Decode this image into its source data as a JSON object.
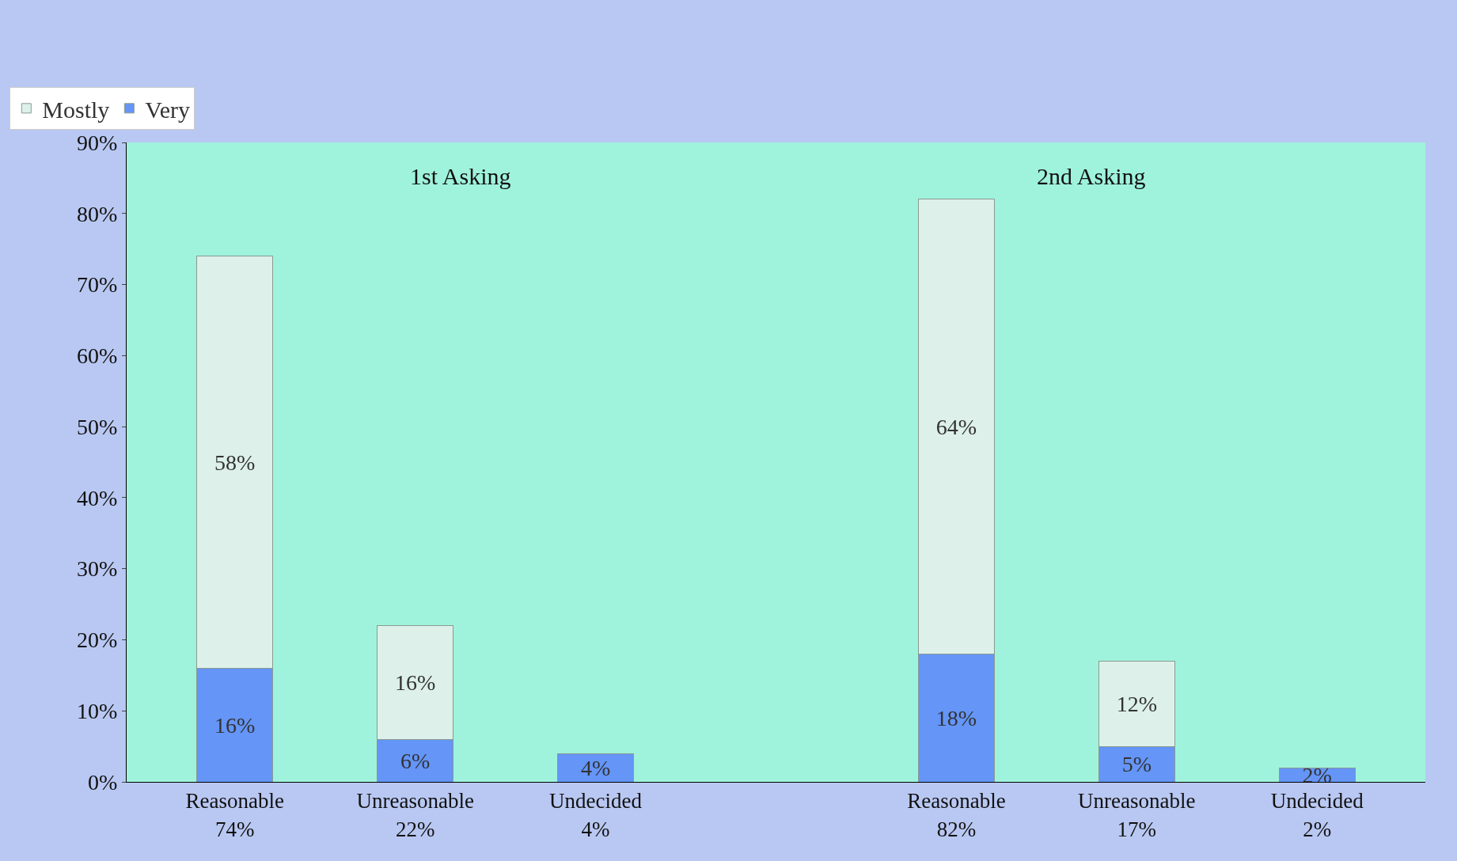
{
  "chart_data": {
    "type": "bar",
    "stacked": true,
    "categories": [
      "Reasonable\n74%",
      "Unreasonable\n22%",
      "Undecided\n4%",
      null,
      "Reasonable\n82%",
      "Unreasonable\n17%",
      "Undecided\n2%"
    ],
    "series": [
      {
        "name": "Very",
        "color": "#6495f7",
        "values": [
          16,
          6,
          4,
          null,
          18,
          5,
          2
        ],
        "value_labels": [
          "16%",
          "6%",
          "4%",
          null,
          "18%",
          "5%",
          "2%"
        ]
      },
      {
        "name": "Mostly",
        "color": "#ddf0ea",
        "values": [
          58,
          16,
          null,
          null,
          64,
          12,
          null
        ],
        "value_labels": [
          "58%",
          "16%",
          null,
          null,
          "64%",
          "12%",
          null
        ]
      }
    ],
    "ylim": [
      0,
      90
    ],
    "yticks": [
      {
        "value": 0,
        "label": "0%"
      },
      {
        "value": 10,
        "label": "10%"
      },
      {
        "value": 20,
        "label": "20%"
      },
      {
        "value": 30,
        "label": "30%"
      },
      {
        "value": 40,
        "label": "40%"
      },
      {
        "value": 50,
        "label": "50%"
      },
      {
        "value": 60,
        "label": "60%"
      },
      {
        "value": 70,
        "label": "70%"
      },
      {
        "value": 80,
        "label": "80%"
      },
      {
        "value": 90,
        "label": "90%"
      }
    ],
    "annotations": [
      "1st Asking",
      "2nd Asking"
    ],
    "legend": "top left",
    "grid": false
  }
}
